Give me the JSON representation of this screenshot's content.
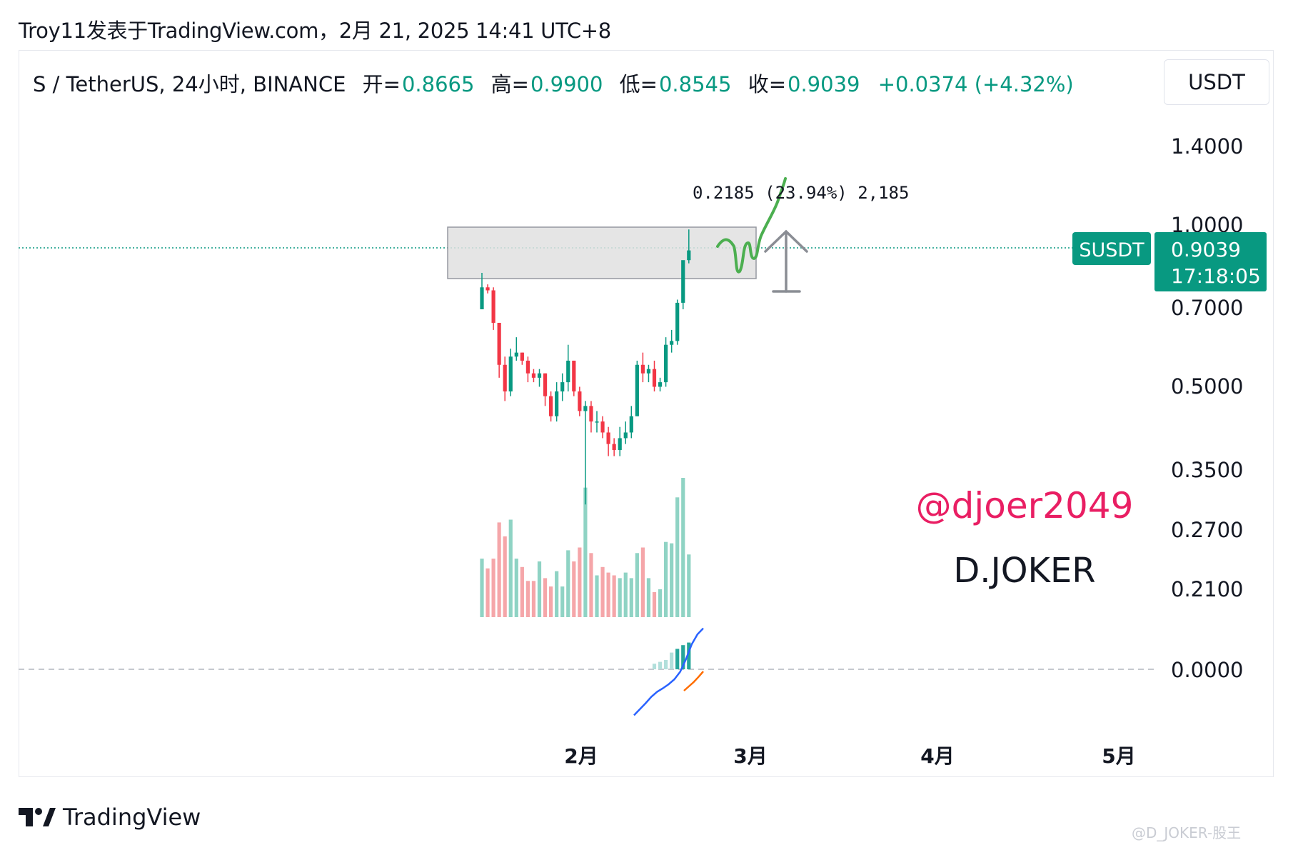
{
  "header": {
    "text": "Troy11发表于TradingView.com，2月 21, 2025 14:41 UTC+8"
  },
  "legend": {
    "symbol": "S / TetherUS, 24小时, BINANCE",
    "open_label": "开=",
    "open": "0.8665",
    "high_label": "高=",
    "high": "0.9900",
    "low_label": "低=",
    "low": "0.8545",
    "close_label": "收=",
    "close": "0.9039",
    "change": "+0.0374 (+4.32%)"
  },
  "currency_button": "USDT",
  "price_axis": [
    "1.4000",
    "1.0000",
    "0.7000",
    "0.5000",
    "0.3500",
    "0.2700",
    "0.2100",
    "0.0000"
  ],
  "time_axis": [
    "2月",
    "3月",
    "4月",
    "5月"
  ],
  "last_price": {
    "symbol": "SUSDT",
    "price": "0.9039",
    "countdown": "17:18:05"
  },
  "measure": {
    "text": "0.2185 (23.94%) 2,185"
  },
  "annotations": {
    "handle": "@djoer2049",
    "name": "D.JOKER"
  },
  "footer": {
    "logo_text": "TradingView"
  },
  "watermark": "@D_JOKER-股王",
  "colors": {
    "up": "#089981",
    "down": "#f23645",
    "up_volume": "#8fd3c4",
    "down_volume": "#f5a6a9",
    "label_bg": "#089981",
    "handle": "#e91e63",
    "drawing": "#4caf50",
    "arrow": "#8a8d94",
    "macd": "#2962ff",
    "signal": "#ff6d00"
  },
  "chart_data": {
    "type": "candlestick",
    "symbol": "S / TetherUS",
    "interval": "24小时",
    "exchange": "BINANCE",
    "scale": "log",
    "y_ticks": [
      1.4,
      1.0,
      0.7,
      0.5,
      0.35,
      0.27,
      0.21
    ],
    "x_ticks": [
      "2月",
      "3月",
      "4月",
      "5月"
    ],
    "last": {
      "open": 0.8665,
      "high": 0.99,
      "low": 0.8545,
      "close": 0.9039,
      "change": 0.0374,
      "change_pct": 4.32
    },
    "zone": {
      "upper": 1.0,
      "lower": 0.79
    },
    "measure": {
      "delta": 0.2185,
      "pct": 23.94,
      "ticks": 2185
    },
    "candles": [
      {
        "o": 0.7,
        "h": 0.82,
        "l": 0.7,
        "c": 0.77
      },
      {
        "o": 0.77,
        "h": 0.78,
        "l": 0.75,
        "c": 0.76
      },
      {
        "o": 0.76,
        "h": 0.77,
        "l": 0.64,
        "c": 0.66
      },
      {
        "o": 0.66,
        "h": 0.66,
        "l": 0.52,
        "c": 0.55
      },
      {
        "o": 0.55,
        "h": 0.57,
        "l": 0.47,
        "c": 0.49
      },
      {
        "o": 0.49,
        "h": 0.59,
        "l": 0.48,
        "c": 0.57
      },
      {
        "o": 0.57,
        "h": 0.62,
        "l": 0.56,
        "c": 0.58
      },
      {
        "o": 0.58,
        "h": 0.58,
        "l": 0.55,
        "c": 0.56
      },
      {
        "o": 0.56,
        "h": 0.57,
        "l": 0.51,
        "c": 0.53
      },
      {
        "o": 0.53,
        "h": 0.54,
        "l": 0.51,
        "c": 0.52
      },
      {
        "o": 0.52,
        "h": 0.54,
        "l": 0.5,
        "c": 0.53
      },
      {
        "o": 0.53,
        "h": 0.53,
        "l": 0.46,
        "c": 0.48
      },
      {
        "o": 0.48,
        "h": 0.49,
        "l": 0.43,
        "c": 0.44
      },
      {
        "o": 0.44,
        "h": 0.51,
        "l": 0.43,
        "c": 0.49
      },
      {
        "o": 0.49,
        "h": 0.53,
        "l": 0.47,
        "c": 0.51
      },
      {
        "o": 0.51,
        "h": 0.6,
        "l": 0.49,
        "c": 0.56
      },
      {
        "o": 0.56,
        "h": 0.56,
        "l": 0.48,
        "c": 0.49
      },
      {
        "o": 0.49,
        "h": 0.5,
        "l": 0.44,
        "c": 0.45
      },
      {
        "o": 0.45,
        "h": 0.47,
        "l": 0.3,
        "c": 0.46
      },
      {
        "o": 0.46,
        "h": 0.47,
        "l": 0.41,
        "c": 0.43
      },
      {
        "o": 0.43,
        "h": 0.45,
        "l": 0.41,
        "c": 0.43
      },
      {
        "o": 0.43,
        "h": 0.44,
        "l": 0.4,
        "c": 0.41
      },
      {
        "o": 0.41,
        "h": 0.42,
        "l": 0.37,
        "c": 0.39
      },
      {
        "o": 0.39,
        "h": 0.4,
        "l": 0.37,
        "c": 0.38
      },
      {
        "o": 0.38,
        "h": 0.42,
        "l": 0.37,
        "c": 0.4
      },
      {
        "o": 0.4,
        "h": 0.43,
        "l": 0.39,
        "c": 0.41
      },
      {
        "o": 0.41,
        "h": 0.46,
        "l": 0.4,
        "c": 0.44
      },
      {
        "o": 0.44,
        "h": 0.56,
        "l": 0.44,
        "c": 0.55
      },
      {
        "o": 0.55,
        "h": 0.58,
        "l": 0.51,
        "c": 0.53
      },
      {
        "o": 0.53,
        "h": 0.55,
        "l": 0.51,
        "c": 0.54
      },
      {
        "o": 0.54,
        "h": 0.56,
        "l": 0.49,
        "c": 0.5
      },
      {
        "o": 0.5,
        "h": 0.52,
        "l": 0.49,
        "c": 0.51
      },
      {
        "o": 0.51,
        "h": 0.62,
        "l": 0.5,
        "c": 0.6
      },
      {
        "o": 0.6,
        "h": 0.64,
        "l": 0.58,
        "c": 0.61
      },
      {
        "o": 0.61,
        "h": 0.73,
        "l": 0.6,
        "c": 0.72
      },
      {
        "o": 0.72,
        "h": 0.86,
        "l": 0.7,
        "c": 0.8665
      },
      {
        "o": 0.8665,
        "h": 0.99,
        "l": 0.8545,
        "c": 0.9039
      }
    ],
    "volume": [
      0.42,
      0.35,
      0.42,
      0.68,
      0.58,
      0.7,
      0.42,
      0.36,
      0.26,
      0.26,
      0.4,
      0.28,
      0.22,
      0.33,
      0.22,
      0.48,
      0.4,
      0.5,
      0.93,
      0.46,
      0.3,
      0.36,
      0.32,
      0.3,
      0.28,
      0.32,
      0.28,
      0.46,
      0.5,
      0.28,
      0.18,
      0.2,
      0.54,
      0.53,
      0.86,
      1.0,
      0.45
    ],
    "oscillator": {
      "histogram": [
        0.15,
        0.2,
        0.25,
        0.45,
        0.55,
        0.65,
        0.72
      ],
      "macd": [
        -0.92,
        -0.8,
        -0.68,
        -0.55,
        -0.45,
        -0.38,
        -0.3,
        -0.2,
        -0.05,
        0.2,
        0.5,
        0.7,
        0.82
      ],
      "signal": [
        -0.5,
        -0.4,
        -0.3,
        -0.18,
        -0.05
      ]
    }
  }
}
